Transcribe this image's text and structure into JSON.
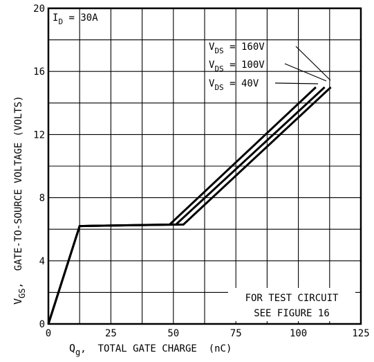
{
  "chart_data": {
    "type": "line",
    "x_label": {
      "main": "Q",
      "sub": "g",
      "rest": ",  TOTAL GATE CHARGE  (nC)"
    },
    "y_label": {
      "main": "V",
      "sub": "GS",
      "rest": ",  GATE-TO-SOURCE VOLTAGE (VOLTS)"
    },
    "xlim": [
      0,
      125
    ],
    "ylim": [
      0,
      20
    ],
    "x_ticks": [
      0,
      25,
      50,
      75,
      100,
      125
    ],
    "y_ticks": [
      0,
      4,
      8,
      12,
      16,
      20
    ],
    "x_grid_step": 12.5,
    "y_grid_step": 2,
    "grid": true,
    "condition": {
      "main": "I",
      "sub": "D",
      "rest": " = 30A"
    },
    "series": [
      {
        "name": "V_DS = 160V",
        "label": {
          "main": "V",
          "sub": "DS",
          "rest": " = 160V"
        },
        "points": [
          [
            0,
            0
          ],
          [
            12.5,
            6.2
          ],
          [
            54,
            6.3
          ],
          [
            113,
            15
          ]
        ]
      },
      {
        "name": "V_DS = 100V",
        "label": {
          "main": "V",
          "sub": "DS",
          "rest": " = 100V"
        },
        "points": [
          [
            0,
            0
          ],
          [
            12.5,
            6.2
          ],
          [
            51,
            6.3
          ],
          [
            110.5,
            15
          ]
        ]
      },
      {
        "name": "V_DS = 40V",
        "label": {
          "main": "V",
          "sub": "DS",
          "rest": " = 40V"
        },
        "points": [
          [
            0,
            0
          ],
          [
            12.5,
            6.2
          ],
          [
            48.5,
            6.3
          ],
          [
            107,
            15
          ]
        ]
      }
    ],
    "annotations": [
      "FOR TEST CIRCUIT",
      "SEE FIGURE 16"
    ]
  }
}
